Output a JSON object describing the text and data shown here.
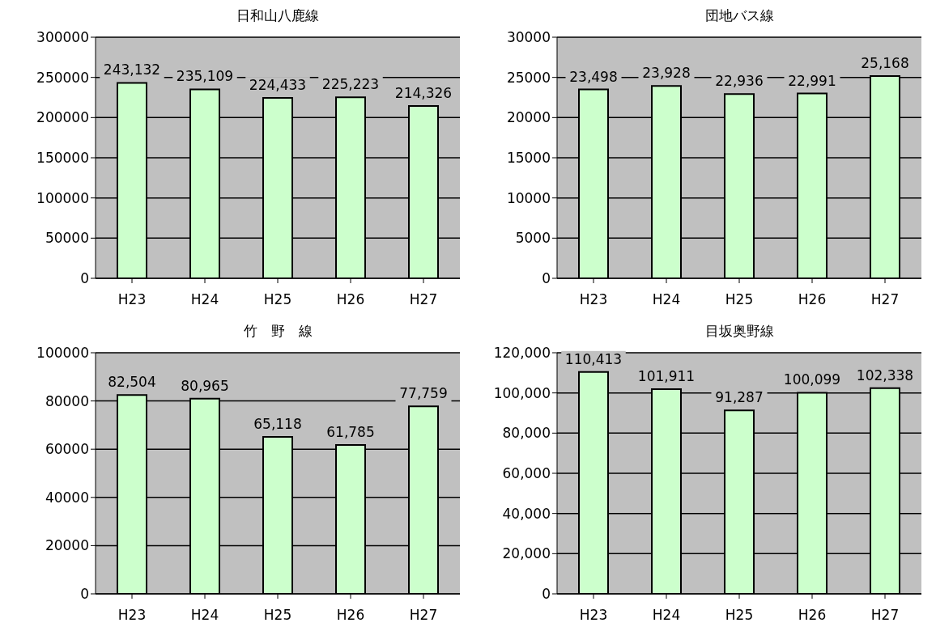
{
  "chart_data": [
    {
      "type": "bar",
      "title": "日和山八鹿線",
      "categories": [
        "H23",
        "H24",
        "H25",
        "H26",
        "H27"
      ],
      "values": [
        243132,
        235109,
        224433,
        225223,
        214326
      ],
      "value_labels": [
        "243,132",
        "235,109",
        "224,433",
        "225,223",
        "214,326"
      ],
      "color": "#ccffcc",
      "ylim": [
        0,
        300000
      ],
      "yticks": [
        0,
        50000,
        100000,
        150000,
        200000,
        250000,
        300000
      ],
      "grid": "y"
    },
    {
      "type": "bar",
      "title": "団地バス線",
      "categories": [
        "H23",
        "H24",
        "H25",
        "H26",
        "H27"
      ],
      "values": [
        23498,
        23928,
        22936,
        22991,
        25168
      ],
      "value_labels": [
        "23,498",
        "23,928",
        "22,936",
        "22,991",
        "25,168"
      ],
      "color": "#ccffcc",
      "ylim": [
        0,
        30000
      ],
      "yticks": [
        0,
        5000,
        10000,
        15000,
        20000,
        25000,
        30000
      ],
      "grid": "y"
    },
    {
      "type": "bar",
      "title": "竹　野　線",
      "categories": [
        "H23",
        "H24",
        "H25",
        "H26",
        "H27"
      ],
      "values": [
        82504,
        80965,
        65118,
        61785,
        77759
      ],
      "value_labels": [
        "82,504",
        "80,965",
        "65,118",
        "61,785",
        "77,759"
      ],
      "color": "#ccffcc",
      "ylim": [
        0,
        100000
      ],
      "yticks": [
        0,
        20000,
        40000,
        60000,
        80000,
        100000
      ],
      "grid": "y"
    },
    {
      "type": "bar",
      "title": "目坂奥野線",
      "categories": [
        "H23",
        "H24",
        "H25",
        "H26",
        "H27"
      ],
      "values": [
        110413,
        101911,
        91287,
        100099,
        102338
      ],
      "value_labels": [
        "110,413",
        "101,911",
        "91,287",
        "100,099",
        "102,338"
      ],
      "color": "#ccffcc",
      "ylim": [
        0,
        120000
      ],
      "yticks": [
        0,
        {
          "value": 20000,
          "label": "20,000"
        },
        {
          "value": 40000,
          "label": "40,000"
        },
        {
          "value": 60000,
          "label": "60,000"
        },
        {
          "value": 80000,
          "label": "80,000"
        },
        {
          "value": 100000,
          "label": "100,000"
        },
        {
          "value": 120000,
          "label": "120,000"
        }
      ],
      "grid": "y"
    }
  ]
}
